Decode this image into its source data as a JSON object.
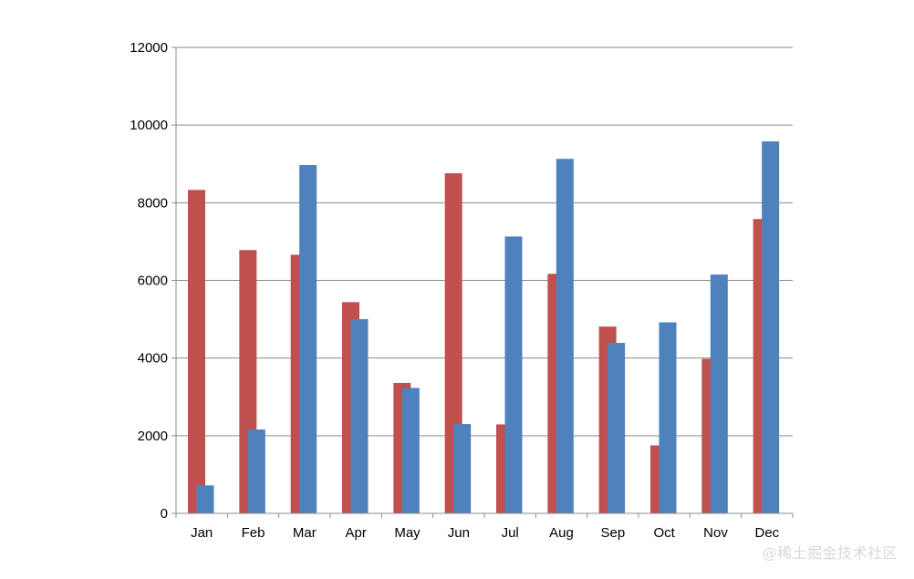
{
  "chart_data": {
    "type": "bar",
    "categories": [
      "Jan",
      "Feb",
      "Mar",
      "Apr",
      "May",
      "Jun",
      "Jul",
      "Aug",
      "Sep",
      "Oct",
      "Nov",
      "Dec"
    ],
    "series": [
      {
        "color": "#c0504d",
        "values": [
          8330,
          6780,
          6660,
          5440,
          3360,
          8760,
          2290,
          6170,
          4810,
          1750,
          3980,
          7580
        ]
      },
      {
        "color": "#4f81bd",
        "values": [
          720,
          2160,
          8970,
          5000,
          3230,
          2300,
          7130,
          9130,
          4390,
          4920,
          6150,
          9580
        ]
      }
    ],
    "y_ticks": [
      "0",
      "2000",
      "4000",
      "6000",
      "8000",
      "10000",
      "12000"
    ],
    "ylim": [
      0,
      12000
    ],
    "title": "",
    "xlabel": "",
    "ylabel": "",
    "grid": true,
    "legend": "none"
  },
  "watermark": "@稀土掘金技术社区",
  "colors": {
    "gridline": "#8c8c8c",
    "axis": "#8c8c8c"
  }
}
